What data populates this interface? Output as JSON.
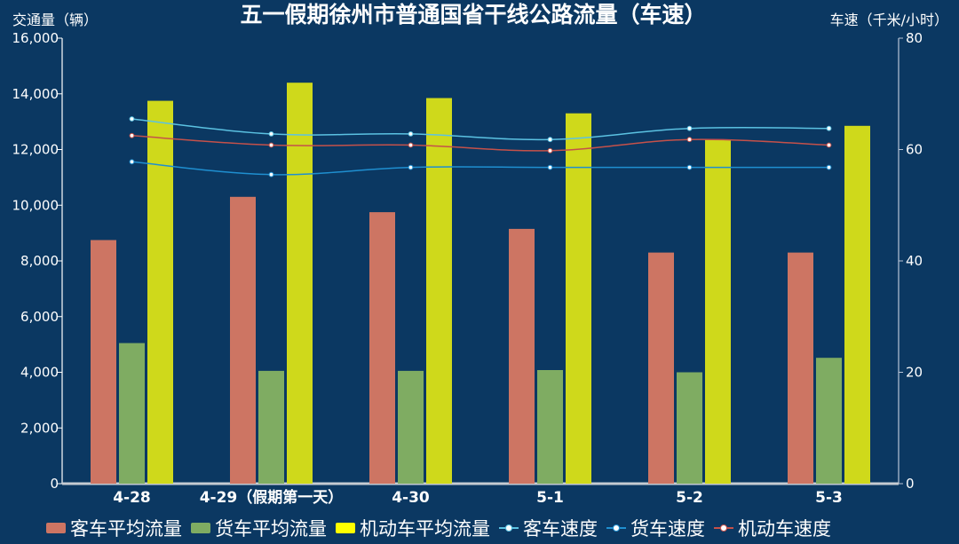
{
  "chart_data": {
    "type": "bar",
    "title": "五一假期徐州市普通国省干线公路流量（车速）",
    "ylabel": "交通量（辆）",
    "y2label": "车速（千米/小时）",
    "ylim": [
      0,
      16000
    ],
    "y2lim": [
      0,
      80
    ],
    "yticks": [
      "0",
      "2,000",
      "4,000",
      "6,000",
      "8,000",
      "10,000",
      "12,000",
      "14,000",
      "16,000"
    ],
    "y2ticks": [
      "0",
      "20",
      "40",
      "60",
      "80"
    ],
    "categories": [
      "4-28",
      "4-29（假期第一天）",
      "4-30",
      "5-1",
      "5-2",
      "5-3"
    ],
    "legend_position": "bottom",
    "series": [
      {
        "name": "客车平均流量",
        "kind": "bar",
        "axis": "left",
        "color": "#cd7563",
        "values": [
          8750,
          10300,
          9750,
          9150,
          8300,
          8300
        ]
      },
      {
        "name": "货车平均流量",
        "kind": "bar",
        "axis": "left",
        "color": "#7fac62",
        "values": [
          5050,
          4050,
          4050,
          4080,
          4000,
          4520
        ]
      },
      {
        "name": "机动车平均流量",
        "kind": "bar",
        "axis": "left",
        "color": "#cfd91b",
        "legend_color": "#ffff00",
        "values": [
          13750,
          14400,
          13850,
          13300,
          12350,
          12850
        ]
      },
      {
        "name": "客车速度",
        "kind": "line",
        "axis": "right",
        "color": "#5bc2e2",
        "values": [
          65.5,
          62.8,
          62.8,
          61.8,
          63.8,
          63.8
        ]
      },
      {
        "name": "货车速度",
        "kind": "line",
        "axis": "right",
        "color": "#1f8fd0",
        "values": [
          57.8,
          55.5,
          56.8,
          56.8,
          56.8,
          56.8
        ]
      },
      {
        "name": "机动车速度",
        "kind": "line",
        "axis": "right",
        "color": "#c5514a",
        "values": [
          62.5,
          60.8,
          60.8,
          59.8,
          61.8,
          60.8
        ]
      }
    ]
  }
}
